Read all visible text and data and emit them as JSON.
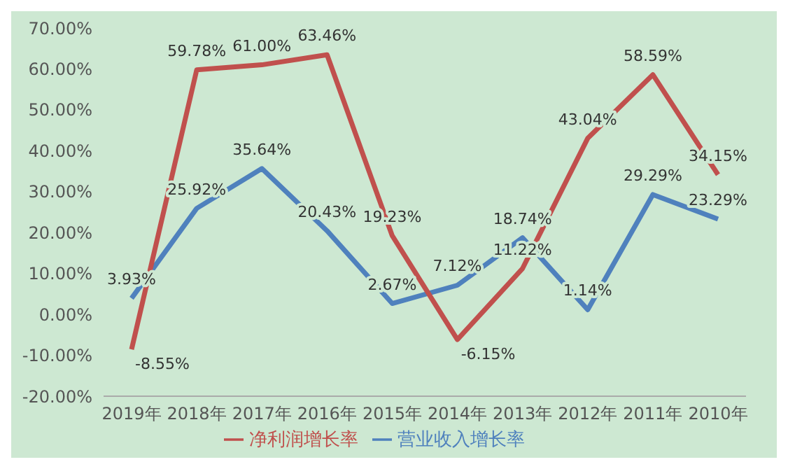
{
  "chart_data": {
    "type": "line",
    "categories": [
      "2019年",
      "2018年",
      "2017年",
      "2016年",
      "2015年",
      "2014年",
      "2013年",
      "2012年",
      "2011年",
      "2010年"
    ],
    "series": [
      {
        "name": "营业收入增长率",
        "color": "#4f81bd",
        "values": [
          3.93,
          25.92,
          35.64,
          20.43,
          2.67,
          7.12,
          18.74,
          1.14,
          29.29,
          23.29
        ],
        "value_labels": [
          "3.93%",
          "25.92%",
          "35.64%",
          "20.43%",
          "2.67%",
          "7.12%",
          "18.74%",
          "1.14%",
          "29.29%",
          "23.29%"
        ]
      },
      {
        "name": "净利润增长率",
        "color": "#c0504d",
        "values": [
          -8.55,
          59.78,
          61.0,
          63.46,
          19.23,
          -6.15,
          11.22,
          43.04,
          58.59,
          34.15
        ],
        "value_labels": [
          "-8.55%",
          "59.78%",
          "61.00%",
          "63.46%",
          "19.23%",
          "-6.15%",
          "11.22%",
          "43.04%",
          "58.59%",
          "34.15%"
        ]
      }
    ],
    "ylim": [
      -20,
      70
    ],
    "yticks": [
      {
        "value": -20,
        "label": "-20.00%"
      },
      {
        "value": -10,
        "label": "-10.00%"
      },
      {
        "value": 0,
        "label": "0.00%"
      },
      {
        "value": 10,
        "label": "10.00%"
      },
      {
        "value": 20,
        "label": "20.00%"
      },
      {
        "value": 30,
        "label": "30.00%"
      },
      {
        "value": 40,
        "label": "40.00%"
      },
      {
        "value": 50,
        "label": "50.00%"
      },
      {
        "value": 60,
        "label": "60.00%"
      },
      {
        "value": 70,
        "label": "70.00%"
      }
    ],
    "grid": false,
    "legend": "bottom",
    "marker": "none",
    "line_style": "solid"
  }
}
